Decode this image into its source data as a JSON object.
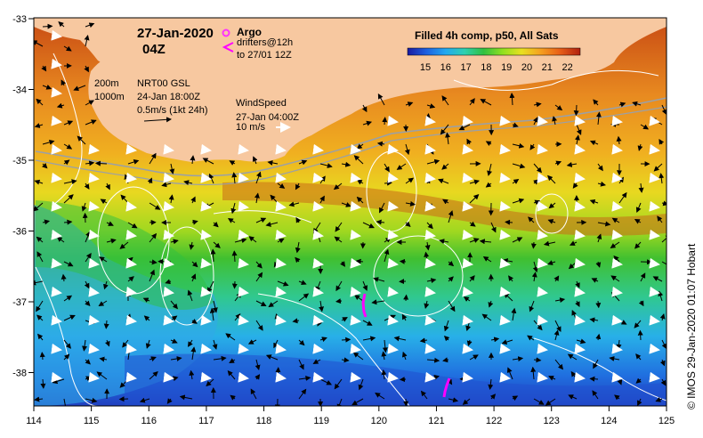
{
  "title": {
    "date": "27-Jan-2020",
    "time": "04Z"
  },
  "argo": {
    "label": "Argo",
    "drifters_line1": "drifters@12h",
    "drifters_line2": "to 27/01 12Z",
    "argo_color": "#ff33ff",
    "drifter_color": "#ff00ff"
  },
  "contours": {
    "depth_200": "200m",
    "depth_1000": "1000m"
  },
  "currents": {
    "source": "NRT00 GSL",
    "datetime": "24-Jan 18:00Z",
    "scale": "0.5m/s (1kt 24h)"
  },
  "wind": {
    "label": "WindSpeed",
    "datetime": "27-Jan 04:00Z",
    "scale": "10 m/s"
  },
  "colorbar": {
    "title": "Filled 4h comp, p50, All Sats",
    "ticks": [
      "15",
      "16",
      "17",
      "18",
      "19",
      "20",
      "21",
      "22"
    ],
    "colors": [
      "#1a1aa0",
      "#1e60e0",
      "#22a8f0",
      "#2ed0b0",
      "#30c040",
      "#90e020",
      "#e8e020",
      "#f5a020",
      "#e86018",
      "#b02010"
    ]
  },
  "axes": {
    "x_ticks": [
      "114",
      "115",
      "116",
      "117",
      "118",
      "119",
      "120",
      "121",
      "122",
      "123",
      "124",
      "125"
    ],
    "y_ticks": [
      "-33",
      "-34",
      "-35",
      "-36",
      "-37",
      "-38"
    ]
  },
  "credit": "© IMOS 29-Jan-2020 01:07 Hobart",
  "map_colors": {
    "land": "#f7c8a0",
    "background": "#ffffff"
  }
}
